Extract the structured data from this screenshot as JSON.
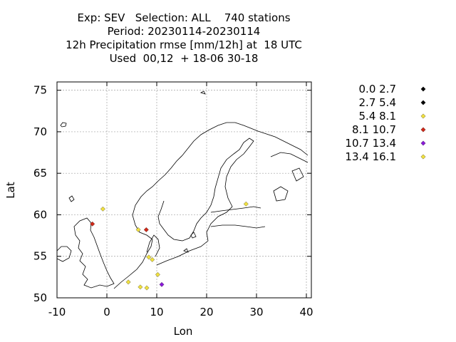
{
  "title_lines": [
    "Exp: SEV   Selection: ALL    740 stations",
    "Period: 20230114-20230114",
    "12h Precipitation rmse [mm/12h] at  18 UTC",
    "Used  00,12  + 18-06 30-18"
  ],
  "chart_data": {
    "type": "scatter",
    "xlabel": "Lon",
    "ylabel": "Lat",
    "xlim": [
      -10,
      41
    ],
    "ylim": [
      50,
      76
    ],
    "xticks": [
      -10,
      0,
      10,
      20,
      30,
      40
    ],
    "yticks": [
      50,
      55,
      60,
      65,
      70,
      75
    ],
    "grid": true,
    "legend_placement": "right",
    "series": [
      {
        "name": "0.0 2.7",
        "color": "#000000",
        "points": []
      },
      {
        "name": "2.7 5.4",
        "color": "#000000",
        "points": []
      },
      {
        "name": "5.4 8.1",
        "color": "#f0e040",
        "points": [
          [
            -0.8,
            60.7
          ],
          [
            6.3,
            58.2
          ],
          [
            4.3,
            51.9
          ],
          [
            8.0,
            51.2
          ],
          [
            6.7,
            51.3
          ],
          [
            9.1,
            54.6
          ],
          [
            10.2,
            52.8
          ],
          [
            27.9,
            61.3
          ]
        ]
      },
      {
        "name": "8.1 10.7",
        "color": "#d02818",
        "points": [
          [
            -2.9,
            58.9
          ],
          [
            7.9,
            58.2
          ]
        ]
      },
      {
        "name": "10.7 13.4",
        "color": "#8a1ad8",
        "points": [
          [
            11.0,
            51.6
          ]
        ]
      },
      {
        "name": "13.4 16.1",
        "color": "#f0e040",
        "points": [
          [
            8.4,
            54.9
          ]
        ]
      }
    ]
  }
}
